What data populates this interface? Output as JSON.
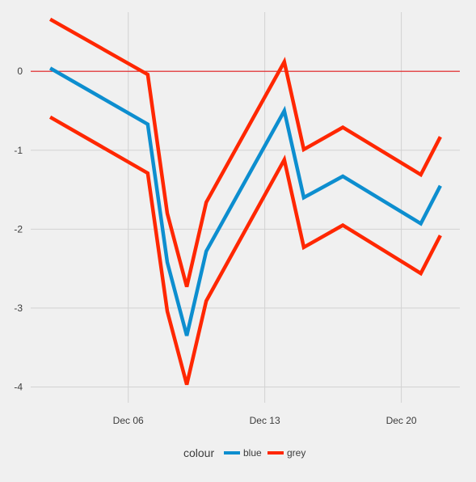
{
  "chart_data": {
    "type": "line",
    "title": "",
    "xlabel": "",
    "ylabel": "",
    "x_axis_type": "date",
    "x_ticks": [
      "Dec 06",
      "Dec 13",
      "Dec 20"
    ],
    "x_tick_dates": [
      "2017-12-06",
      "2017-12-13",
      "2017-12-20"
    ],
    "xlim": [
      "2017-12-01",
      "2017-12-23"
    ],
    "ylim": [
      -4.2,
      0.75
    ],
    "y_ticks": [
      0,
      -1,
      -2,
      -3,
      -4
    ],
    "grid": true,
    "legend": {
      "title": "colour",
      "position": "bottom",
      "entries": [
        "blue",
        "grey"
      ]
    },
    "x": [
      "2017-12-02",
      "2017-12-07",
      "2017-12-08",
      "2017-12-09",
      "2017-12-10",
      "2017-12-14",
      "2017-12-15",
      "2017-12-17",
      "2017-12-21",
      "2017-12-22"
    ],
    "series": [
      {
        "name": "blue",
        "color": "#0d8ecf",
        "role": "center",
        "values": [
          0.04,
          -0.67,
          -2.42,
          -3.35,
          -2.28,
          -0.5,
          -1.6,
          -1.33,
          -1.93,
          -1.45
        ]
      },
      {
        "name": "grey",
        "color": "#ff2700",
        "role": "upper",
        "values": [
          0.66,
          -0.04,
          -1.8,
          -2.73,
          -1.66,
          0.12,
          -0.99,
          -0.71,
          -1.31,
          -0.83
        ]
      },
      {
        "name": "grey",
        "color": "#ff2700",
        "role": "lower",
        "values": [
          -0.58,
          -1.29,
          -3.04,
          -3.97,
          -2.91,
          -1.12,
          -2.23,
          -1.95,
          -2.56,
          -2.08
        ]
      }
    ],
    "reference_line": {
      "y": 0,
      "color": "#e31a1c"
    }
  }
}
